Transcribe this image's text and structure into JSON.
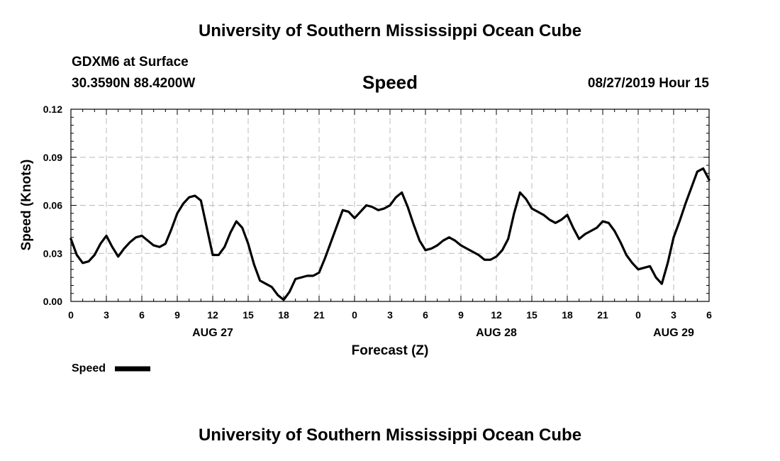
{
  "header": {
    "title_top": "University of Southern Mississippi Ocean Cube",
    "station": "GDXM6 at Surface",
    "coords": "30.3590N 88.4200W",
    "variable": "Speed",
    "datetime": "08/27/2019 Hour 15",
    "title_bottom": "University of Southern Mississippi Ocean Cube"
  },
  "legend": {
    "label": "Speed",
    "color": "#000000"
  },
  "chart_data": {
    "type": "line",
    "title": "Speed",
    "xlabel": "Forecast (Z)",
    "ylabel": "Speed (Knots)",
    "xlim": [
      0,
      54
    ],
    "ylim": [
      0,
      0.12
    ],
    "x_ticks": [
      0,
      3,
      6,
      9,
      12,
      15,
      18,
      21,
      24,
      27,
      30,
      33,
      36,
      39,
      42,
      45,
      48,
      51,
      54
    ],
    "x_tick_labels": [
      "0",
      "3",
      "6",
      "9",
      "12",
      "15",
      "18",
      "21",
      "0",
      "3",
      "6",
      "9",
      "12",
      "15",
      "18",
      "21",
      "0",
      "3",
      "6"
    ],
    "y_ticks": [
      0,
      0.03,
      0.06,
      0.09,
      0.12
    ],
    "y_tick_labels": [
      "0.00",
      "0.03",
      "0.06",
      "0.09",
      "0.12"
    ],
    "day_labels": [
      {
        "label": "AUG 27",
        "x": 12
      },
      {
        "label": "AUG 28",
        "x": 36
      },
      {
        "label": "AUG 29",
        "x": 51
      }
    ],
    "grid": true,
    "series": [
      {
        "name": "Speed",
        "color": "#000000",
        "x": [
          0,
          0.5,
          1,
          1.5,
          2,
          2.5,
          3,
          3.5,
          4,
          4.5,
          5,
          5.5,
          6,
          6.5,
          7,
          7.5,
          8,
          8.5,
          9,
          9.5,
          10,
          10.5,
          11,
          11.5,
          12,
          12.5,
          13,
          13.5,
          14,
          14.5,
          15,
          15.5,
          16,
          16.5,
          17,
          17.5,
          18,
          18.5,
          19,
          19.5,
          20,
          20.5,
          21,
          21.5,
          22,
          22.5,
          23,
          23.5,
          24,
          24.5,
          25,
          25.5,
          26,
          26.5,
          27,
          27.5,
          28,
          28.5,
          29,
          29.5,
          30,
          30.5,
          31,
          31.5,
          32,
          32.5,
          33,
          33.5,
          34,
          34.5,
          35,
          35.5,
          36,
          36.5,
          37,
          37.5,
          38,
          38.5,
          39,
          39.5,
          40,
          40.5,
          41,
          41.5,
          42,
          42.5,
          43,
          43.5,
          44,
          44.5,
          45,
          45.5,
          46,
          46.5,
          47,
          47.5,
          48,
          48.5,
          49,
          49.5,
          50,
          50.5,
          51,
          51.5,
          52,
          52.5,
          53,
          53.5,
          54
        ],
        "values": [
          0.039,
          0.029,
          0.024,
          0.025,
          0.029,
          0.036,
          0.041,
          0.034,
          0.028,
          0.033,
          0.037,
          0.04,
          0.041,
          0.038,
          0.035,
          0.034,
          0.036,
          0.045,
          0.055,
          0.061,
          0.065,
          0.066,
          0.063,
          0.046,
          0.029,
          0.029,
          0.034,
          0.043,
          0.05,
          0.046,
          0.036,
          0.023,
          0.013,
          0.011,
          0.009,
          0.004,
          0.001,
          0.006,
          0.014,
          0.015,
          0.016,
          0.016,
          0.018,
          0.027,
          0.037,
          0.047,
          0.057,
          0.056,
          0.052,
          0.056,
          0.06,
          0.059,
          0.057,
          0.058,
          0.06,
          0.065,
          0.068,
          0.059,
          0.048,
          0.038,
          0.032,
          0.033,
          0.035,
          0.038,
          0.04,
          0.038,
          0.035,
          0.033,
          0.031,
          0.029,
          0.026,
          0.026,
          0.028,
          0.032,
          0.039,
          0.055,
          0.068,
          0.064,
          0.058,
          0.056,
          0.054,
          0.051,
          0.049,
          0.051,
          0.054,
          0.046,
          0.039,
          0.042,
          0.044,
          0.046,
          0.05,
          0.049,
          0.044,
          0.037,
          0.029,
          0.024,
          0.02,
          0.021,
          0.022,
          0.015,
          0.011,
          0.024,
          0.04,
          0.05,
          0.061,
          0.071,
          0.081,
          0.083,
          0.076
        ]
      }
    ]
  }
}
